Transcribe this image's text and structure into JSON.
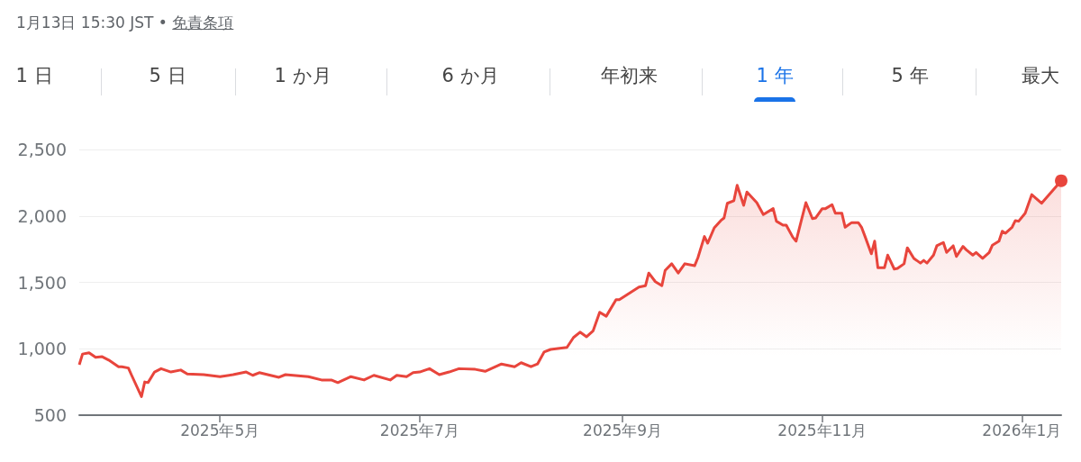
{
  "chart_data": {
    "type": "area",
    "subtitle": "1月13日 15:30 JST • 免責条項",
    "annotations": [
      "1 日",
      "5 日",
      "1 か月",
      "6 か月",
      "年初来",
      "1 年",
      "5 年",
      "最大"
    ],
    "x": [
      "2025-03-19",
      "2025-03-20",
      "2025-03-22",
      "2025-03-24",
      "2025-03-26",
      "2025-03-28",
      "2025-03-31",
      "2025-04-01",
      "2025-04-03",
      "2025-04-04",
      "2025-04-07",
      "2025-04-08",
      "2025-04-09",
      "2025-04-11",
      "2025-04-13",
      "2025-04-16",
      "2025-04-19",
      "2025-04-21",
      "2025-04-26",
      "2025-05-01",
      "2025-05-05",
      "2025-05-09",
      "2025-05-11",
      "2025-05-13",
      "2025-05-19",
      "2025-05-21",
      "2025-05-28",
      "2025-06-01",
      "2025-06-04",
      "2025-06-06",
      "2025-06-10",
      "2025-06-14",
      "2025-06-17",
      "2025-06-22",
      "2025-06-24",
      "2025-06-27",
      "2025-06-29",
      "2025-07-01",
      "2025-07-04",
      "2025-07-07",
      "2025-07-10",
      "2025-07-13",
      "2025-07-18",
      "2025-07-21",
      "2025-07-26",
      "2025-07-30",
      "2025-08-01",
      "2025-08-04",
      "2025-08-06",
      "2025-08-08",
      "2025-08-10",
      "2025-08-15",
      "2025-08-17",
      "2025-08-19",
      "2025-08-21",
      "2025-08-23",
      "2025-08-25",
      "2025-08-27",
      "2025-08-30",
      "2025-08-31",
      "2025-09-06",
      "2025-09-08",
      "2025-09-09",
      "2025-09-11",
      "2025-09-13",
      "2025-09-14",
      "2025-09-16",
      "2025-09-18",
      "2025-09-20",
      "2025-09-23",
      "2025-09-24",
      "2025-09-26",
      "2025-09-27",
      "2025-09-29",
      "2025-10-01",
      "2025-10-02",
      "2025-10-03",
      "2025-10-05",
      "2025-10-06",
      "2025-10-08",
      "2025-10-09",
      "2025-10-12",
      "2025-10-14",
      "2025-10-17",
      "2025-10-18",
      "2025-10-20",
      "2025-10-21",
      "2025-10-23",
      "2025-10-24",
      "2025-10-27",
      "2025-10-29",
      "2025-10-30",
      "2025-11-01",
      "2025-11-02",
      "2025-11-04",
      "2025-11-05",
      "2025-11-07",
      "2025-11-08",
      "2025-11-10",
      "2025-11-12",
      "2025-11-13",
      "2025-11-14",
      "2025-11-16",
      "2025-11-17",
      "2025-11-18",
      "2025-11-20",
      "2025-11-21",
      "2025-11-23",
      "2025-11-24",
      "2025-11-26",
      "2025-11-27",
      "2025-11-29",
      "2025-12-01",
      "2025-12-02",
      "2025-12-03",
      "2025-12-05",
      "2025-12-06",
      "2025-12-08",
      "2025-12-09",
      "2025-12-11",
      "2025-12-12",
      "2025-12-14",
      "2025-12-15",
      "2025-12-17",
      "2025-12-18",
      "2025-12-20",
      "2025-12-22",
      "2025-12-23",
      "2025-12-25",
      "2025-12-26",
      "2025-12-27",
      "2025-12-29",
      "2025-12-30",
      "2025-12-31",
      "2026-01-02",
      "2026-01-04",
      "2026-01-07",
      "2026-01-13"
    ],
    "series": [
      {
        "color": "#e8453c",
        "values": [
          880,
          960,
          970,
          935,
          940,
          915,
          865,
          865,
          855,
          800,
          640,
          750,
          745,
          825,
          850,
          825,
          840,
          810,
          805,
          790,
          805,
          825,
          800,
          820,
          785,
          805,
          790,
          765,
          765,
          745,
          790,
          765,
          800,
          765,
          800,
          790,
          820,
          825,
          850,
          805,
          825,
          850,
          845,
          830,
          885,
          865,
          895,
          865,
          885,
          975,
          995,
          1010,
          1085,
          1125,
          1090,
          1135,
          1275,
          1245,
          1370,
          1370,
          1465,
          1475,
          1570,
          1505,
          1475,
          1590,
          1640,
          1570,
          1640,
          1625,
          1685,
          1845,
          1795,
          1910,
          1965,
          1985,
          2095,
          2115,
          2230,
          2080,
          2180,
          2100,
          2010,
          2055,
          1960,
          1930,
          1930,
          1840,
          1810,
          2100,
          1980,
          1985,
          2055,
          2055,
          2085,
          2020,
          2020,
          1915,
          1950,
          1950,
          1915,
          1850,
          1715,
          1810,
          1610,
          1610,
          1705,
          1600,
          1605,
          1640,
          1760,
          1680,
          1645,
          1665,
          1645,
          1705,
          1775,
          1800,
          1725,
          1775,
          1695,
          1770,
          1745,
          1705,
          1725,
          1680,
          1725,
          1780,
          1810,
          1885,
          1870,
          1915,
          1965,
          1960,
          2020,
          2160,
          2095,
          2265
        ]
      }
    ],
    "xlim": [
      "2025-03-19",
      "2026-01-13"
    ],
    "xticks": [
      {
        "value": "2025-05-01",
        "label": "2025年5月"
      },
      {
        "value": "2025-07-01",
        "label": "2025年7月"
      },
      {
        "value": "2025-09-01",
        "label": "2025年9月"
      },
      {
        "value": "2025-11-01",
        "label": "2025年11月"
      },
      {
        "value": "2026-01-01",
        "label": "2026年1月"
      }
    ],
    "ylim": [
      500,
      2500
    ],
    "yticks": [
      {
        "value": 500,
        "label": "500"
      },
      {
        "value": 1000,
        "label": "1,000"
      },
      {
        "value": 1500,
        "label": "1,500"
      },
      {
        "value": 2000,
        "label": "2,000"
      },
      {
        "value": 2500,
        "label": "2,500"
      }
    ],
    "grid": "y"
  }
}
